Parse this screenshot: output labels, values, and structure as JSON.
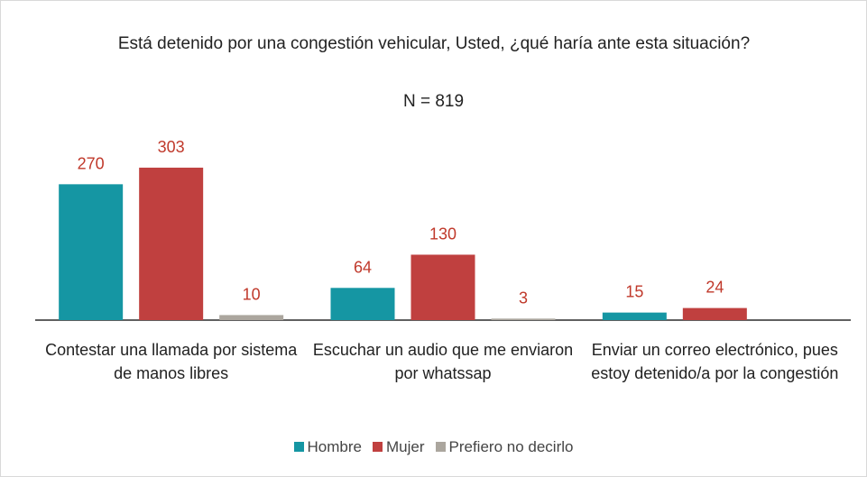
{
  "chart_data": {
    "type": "bar",
    "title": "Está detenido por una congestión vehicular, Usted, ¿qué haría ante esta situación?",
    "subtitle": "N = 819",
    "categories": [
      "Contestar una llamada por sistema de manos libres",
      "Escuchar un audio que me enviaron por whatssap",
      "Enviar un correo electrónico, pues estoy detenido/a por la congestión"
    ],
    "series": [
      {
        "name": "Hombre",
        "color": "#1596a3",
        "values": [
          270,
          64,
          15
        ]
      },
      {
        "name": "Mujer",
        "color": "#c0403f",
        "values": [
          303,
          130,
          24
        ]
      },
      {
        "name": "Prefiero no decirlo",
        "color": "#aba69e",
        "values": [
          10,
          3,
          null
        ]
      }
    ],
    "label_color": "#c0392b",
    "legend": "bottom"
  }
}
